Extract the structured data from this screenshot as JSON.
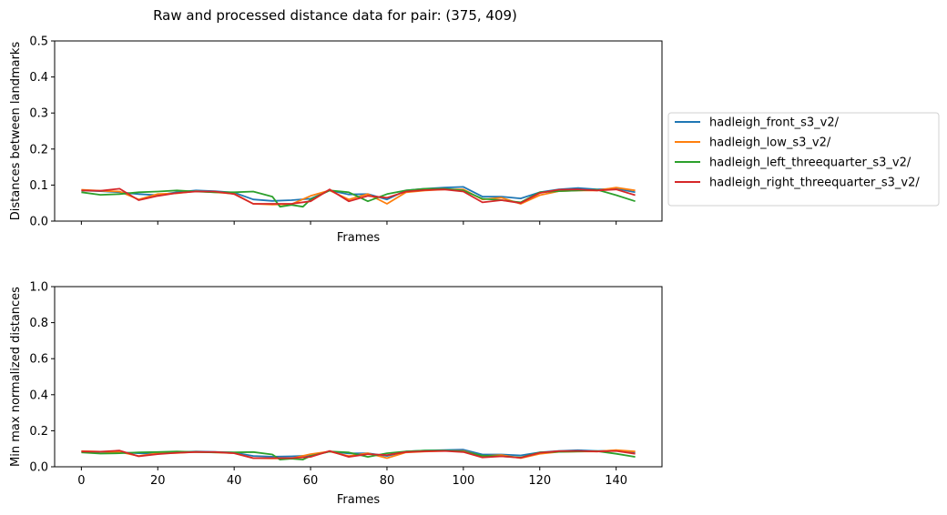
{
  "title": "Raw and processed distance data for pair: (375, 409)",
  "legend": {
    "position": "right-of-top-plot",
    "entries": [
      {
        "label": "hadleigh_front_s3_v2/",
        "color": "#1f77b4"
      },
      {
        "label": "hadleigh_low_s3_v2/",
        "color": "#ff7f0e"
      },
      {
        "label": "hadleigh_left_threequarter_s3_v2/",
        "color": "#2ca02c"
      },
      {
        "label": "hadleigh_right_threequarter_s3_v2/",
        "color": "#d62728"
      }
    ]
  },
  "chart_data": [
    {
      "type": "line",
      "xlabel": "Frames",
      "ylabel": "Distances between landmarks",
      "xlim": [
        -7,
        152
      ],
      "ylim": [
        0,
        0.5
      ],
      "yticks": [
        "0.0",
        "0.1",
        "0.2",
        "0.3",
        "0.4",
        "0.5"
      ],
      "show_xtick_labels": false,
      "grid": false,
      "series": [
        {
          "name": "hadleigh_front_s3_v2/",
          "color": "#1f77b4",
          "x": [
            0,
            5,
            10,
            15,
            20,
            25,
            30,
            35,
            40,
            45,
            50,
            55,
            60,
            65,
            70,
            75,
            80,
            85,
            90,
            95,
            100,
            105,
            110,
            115,
            120,
            125,
            130,
            135,
            140,
            145
          ],
          "y": [
            0.085,
            0.083,
            0.08,
            0.075,
            0.072,
            0.08,
            0.085,
            0.083,
            0.079,
            0.06,
            0.056,
            0.058,
            0.062,
            0.085,
            0.074,
            0.075,
            0.06,
            0.085,
            0.09,
            0.093,
            0.095,
            0.068,
            0.068,
            0.063,
            0.08,
            0.088,
            0.092,
            0.088,
            0.09,
            0.08
          ]
        },
        {
          "name": "hadleigh_low_s3_v2/",
          "color": "#ff7f0e",
          "x": [
            0,
            5,
            10,
            15,
            20,
            25,
            30,
            35,
            40,
            45,
            50,
            55,
            60,
            65,
            70,
            75,
            80,
            85,
            90,
            95,
            100,
            105,
            110,
            115,
            120,
            125,
            130,
            135,
            140,
            145
          ],
          "y": [
            0.087,
            0.084,
            0.082,
            0.06,
            0.075,
            0.077,
            0.083,
            0.08,
            0.076,
            0.048,
            0.046,
            0.047,
            0.07,
            0.085,
            0.06,
            0.075,
            0.048,
            0.08,
            0.085,
            0.088,
            0.088,
            0.06,
            0.065,
            0.048,
            0.072,
            0.083,
            0.085,
            0.085,
            0.093,
            0.085
          ]
        },
        {
          "name": "hadleigh_left_threequarter_s3_v2/",
          "color": "#2ca02c",
          "x": [
            0,
            5,
            10,
            15,
            20,
            25,
            30,
            35,
            40,
            45,
            50,
            52,
            55,
            58,
            60,
            65,
            70,
            75,
            80,
            85,
            90,
            95,
            100,
            105,
            110,
            115,
            120,
            125,
            130,
            135,
            140,
            145
          ],
          "y": [
            0.08,
            0.073,
            0.075,
            0.08,
            0.082,
            0.085,
            0.082,
            0.08,
            0.08,
            0.082,
            0.068,
            0.04,
            0.045,
            0.04,
            0.06,
            0.085,
            0.08,
            0.055,
            0.075,
            0.085,
            0.09,
            0.09,
            0.085,
            0.062,
            0.058,
            0.052,
            0.08,
            0.083,
            0.085,
            0.087,
            0.072,
            0.055
          ]
        },
        {
          "name": "hadleigh_right_threequarter_s3_v2/",
          "color": "#d62728",
          "x": [
            0,
            5,
            10,
            15,
            20,
            25,
            30,
            35,
            40,
            45,
            50,
            55,
            60,
            65,
            70,
            75,
            80,
            85,
            90,
            95,
            100,
            105,
            110,
            115,
            120,
            125,
            130,
            135,
            140,
            145
          ],
          "y": [
            0.085,
            0.084,
            0.09,
            0.058,
            0.07,
            0.078,
            0.082,
            0.082,
            0.075,
            0.048,
            0.048,
            0.048,
            0.055,
            0.088,
            0.055,
            0.07,
            0.065,
            0.082,
            0.086,
            0.088,
            0.082,
            0.052,
            0.058,
            0.05,
            0.078,
            0.087,
            0.088,
            0.085,
            0.088,
            0.072
          ]
        }
      ]
    },
    {
      "type": "line",
      "xlabel": "Frames",
      "ylabel": "Min max normalized distances",
      "xlim": [
        -7,
        152
      ],
      "ylim": [
        0,
        1.0
      ],
      "xticks": [
        "0",
        "20",
        "40",
        "60",
        "80",
        "100",
        "120",
        "140"
      ],
      "yticks": [
        "0.0",
        "0.2",
        "0.4",
        "0.6",
        "0.8",
        "1.0"
      ],
      "show_xtick_labels": true,
      "grid": false,
      "series": [
        {
          "name": "hadleigh_front_s3_v2/",
          "color": "#1f77b4",
          "x": [
            0,
            5,
            10,
            15,
            20,
            25,
            30,
            35,
            40,
            45,
            50,
            55,
            60,
            65,
            70,
            75,
            80,
            85,
            90,
            95,
            100,
            105,
            110,
            115,
            120,
            125,
            130,
            135,
            140,
            145
          ],
          "y": [
            0.085,
            0.083,
            0.08,
            0.075,
            0.072,
            0.08,
            0.085,
            0.083,
            0.079,
            0.06,
            0.056,
            0.058,
            0.062,
            0.085,
            0.074,
            0.075,
            0.06,
            0.085,
            0.09,
            0.093,
            0.095,
            0.068,
            0.068,
            0.063,
            0.08,
            0.088,
            0.092,
            0.088,
            0.09,
            0.08
          ]
        },
        {
          "name": "hadleigh_low_s3_v2/",
          "color": "#ff7f0e",
          "x": [
            0,
            5,
            10,
            15,
            20,
            25,
            30,
            35,
            40,
            45,
            50,
            55,
            60,
            65,
            70,
            75,
            80,
            85,
            90,
            95,
            100,
            105,
            110,
            115,
            120,
            125,
            130,
            135,
            140,
            145
          ],
          "y": [
            0.087,
            0.084,
            0.082,
            0.06,
            0.075,
            0.077,
            0.083,
            0.08,
            0.076,
            0.048,
            0.046,
            0.047,
            0.07,
            0.085,
            0.06,
            0.075,
            0.048,
            0.08,
            0.085,
            0.088,
            0.088,
            0.06,
            0.065,
            0.048,
            0.072,
            0.083,
            0.085,
            0.085,
            0.093,
            0.085
          ]
        },
        {
          "name": "hadleigh_left_threequarter_s3_v2/",
          "color": "#2ca02c",
          "x": [
            0,
            5,
            10,
            15,
            20,
            25,
            30,
            35,
            40,
            45,
            50,
            52,
            55,
            58,
            60,
            65,
            70,
            75,
            80,
            85,
            90,
            95,
            100,
            105,
            110,
            115,
            120,
            125,
            130,
            135,
            140,
            145
          ],
          "y": [
            0.08,
            0.073,
            0.075,
            0.08,
            0.082,
            0.085,
            0.082,
            0.08,
            0.08,
            0.082,
            0.068,
            0.04,
            0.045,
            0.04,
            0.06,
            0.085,
            0.08,
            0.055,
            0.075,
            0.085,
            0.09,
            0.09,
            0.085,
            0.062,
            0.058,
            0.052,
            0.08,
            0.083,
            0.085,
            0.087,
            0.072,
            0.055
          ]
        },
        {
          "name": "hadleigh_right_threequarter_s3_v2/",
          "color": "#d62728",
          "x": [
            0,
            5,
            10,
            15,
            20,
            25,
            30,
            35,
            40,
            45,
            50,
            55,
            60,
            65,
            70,
            75,
            80,
            85,
            90,
            95,
            100,
            105,
            110,
            115,
            120,
            125,
            130,
            135,
            140,
            145
          ],
          "y": [
            0.085,
            0.084,
            0.09,
            0.058,
            0.07,
            0.078,
            0.082,
            0.082,
            0.075,
            0.048,
            0.048,
            0.048,
            0.055,
            0.088,
            0.055,
            0.07,
            0.065,
            0.082,
            0.086,
            0.088,
            0.082,
            0.052,
            0.058,
            0.05,
            0.078,
            0.087,
            0.088,
            0.085,
            0.088,
            0.072
          ]
        }
      ]
    }
  ]
}
